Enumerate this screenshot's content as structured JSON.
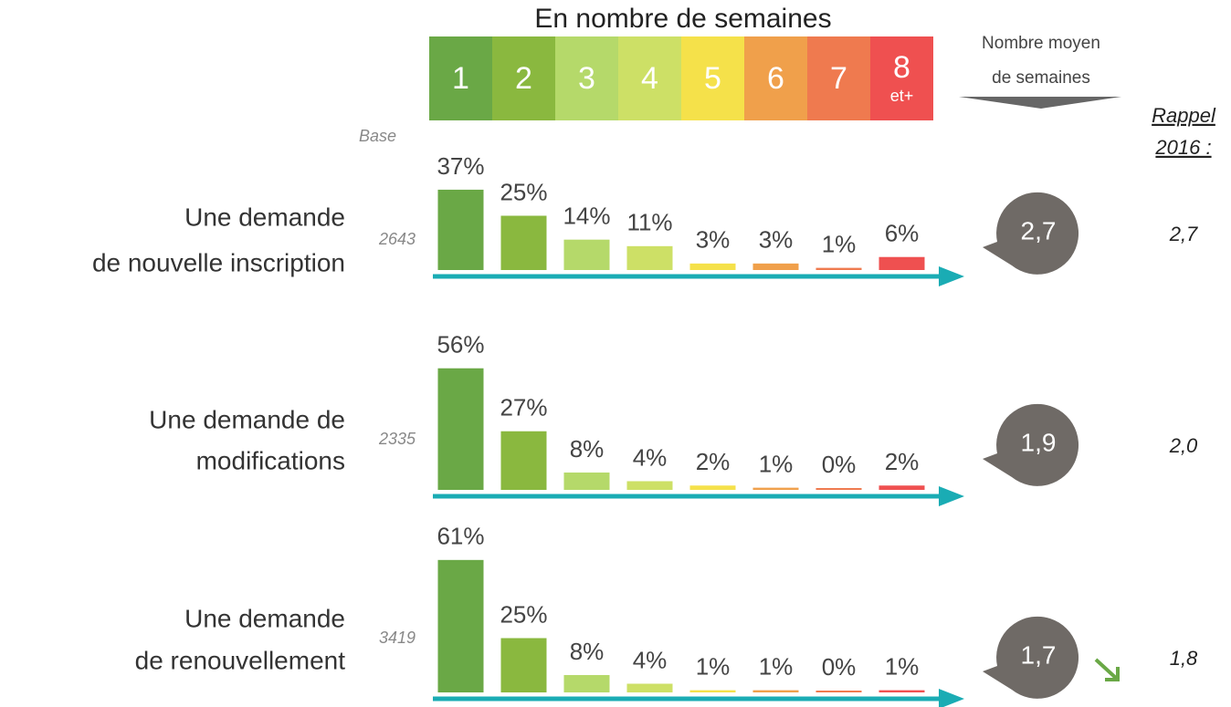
{
  "header": {
    "title": "En nombre de semaines",
    "categories": [
      [
        "1"
      ],
      [
        "2"
      ],
      [
        "3"
      ],
      [
        "4"
      ],
      [
        "5"
      ],
      [
        "6"
      ],
      [
        "7"
      ],
      [
        "8",
        "et+"
      ]
    ],
    "colors": [
      "#6aa846",
      "#8ab83f",
      "#b5d96a",
      "#cde066",
      "#f5e14a",
      "#f0a04b",
      "#ef7a4f",
      "#ef5050"
    ],
    "mean_label": [
      "Nombre moyen",
      "de semaines"
    ],
    "base_label": "Base",
    "rappel_label": [
      "Rappel",
      "2016 :"
    ]
  },
  "chart_data": [
    {
      "type": "bar",
      "title": [
        "Une demande",
        "de nouvelle inscription"
      ],
      "base": 2643,
      "values": [
        37,
        25,
        14,
        11,
        3,
        3,
        1,
        6
      ],
      "value_labels": [
        "37%",
        "25%",
        "14%",
        "11%",
        "3%",
        "3%",
        "1%",
        "6%"
      ],
      "mean": {
        "value": 2.7,
        "label": "2,7"
      },
      "rappel": {
        "value": 2.7,
        "label": "2,7"
      }
    },
    {
      "type": "bar",
      "title": [
        "Une demande de",
        "modifications"
      ],
      "base": 2335,
      "values": [
        56,
        27,
        8,
        4,
        2,
        1,
        0,
        2
      ],
      "value_labels": [
        "56%",
        "27%",
        "8%",
        "4%",
        "2%",
        "1%",
        "0%",
        "2%"
      ],
      "mean": {
        "value": 1.9,
        "label": "1,9"
      },
      "rappel": {
        "value": 2.0,
        "label": "2,0"
      }
    },
    {
      "type": "bar",
      "title": [
        "Une demande",
        "de renouvellement"
      ],
      "base": 3419,
      "values": [
        61,
        25,
        8,
        4,
        1,
        1,
        0,
        1
      ],
      "value_labels": [
        "61%",
        "25%",
        "8%",
        "4%",
        "1%",
        "1%",
        "0%",
        "1%"
      ],
      "mean": {
        "value": 1.7,
        "label": "1,7"
      },
      "rappel": {
        "value": 1.8,
        "label": "1,8"
      }
    }
  ]
}
